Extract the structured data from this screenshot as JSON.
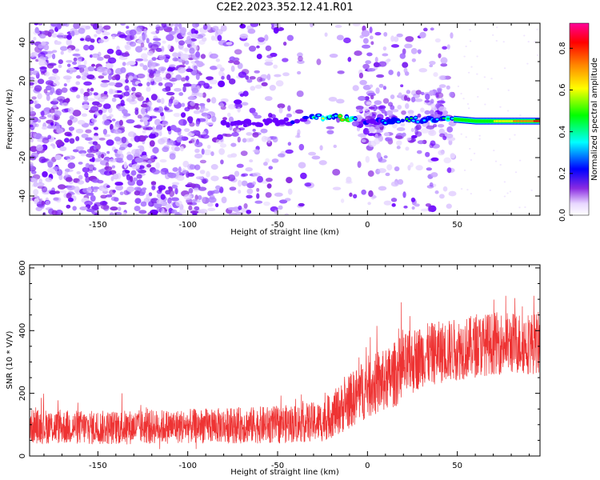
{
  "title": "C2E2.2023.352.12.41.R01",
  "chart_data": [
    {
      "type": "heatmap",
      "xlabel": "Height of straight line (km)",
      "ylabel": "Frequency (Hz)",
      "xlim": [
        -188,
        96
      ],
      "ylim": [
        -50,
        50
      ],
      "xticks": [
        -150,
        -100,
        -50,
        0,
        50
      ],
      "yticks": [
        -40,
        -20,
        0,
        20,
        40
      ],
      "colorbar": {
        "label": "Normalized spectral amplitude",
        "range": [
          0.0,
          0.92
        ],
        "ticks": [
          0.0,
          0.2,
          0.4,
          0.6,
          0.8
        ],
        "colors": [
          "#ffffff",
          "#6600ff",
          "#0000ff",
          "#00ffff",
          "#00ff00",
          "#ffff00",
          "#ff8800",
          "#ff0000",
          "#ff0099"
        ]
      },
      "ridge": {
        "description_points_x": [
          -80,
          -60,
          -40,
          -30,
          -20,
          -10,
          -5,
          0,
          10,
          20,
          30,
          40,
          48,
          60,
          70,
          80,
          90,
          95
        ],
        "frequency_hz": [
          -3,
          -2,
          -1,
          1,
          1,
          0,
          -1,
          -1,
          -1,
          -1,
          0,
          0,
          0,
          -1,
          -1,
          -1,
          -1,
          -1
        ],
        "amplitude": [
          0.15,
          0.18,
          0.22,
          0.42,
          0.55,
          0.62,
          0.3,
          0.2,
          0.3,
          0.35,
          0.4,
          0.42,
          0.5,
          0.55,
          0.6,
          0.7,
          0.8,
          0.85
        ]
      }
    },
    {
      "type": "line",
      "xlabel": "Height of straight line (km)",
      "ylabel": "SNR (10 * V/V)",
      "xlim": [
        -188,
        96
      ],
      "ylim": [
        0,
        610
      ],
      "xticks": [
        -150,
        -100,
        -50,
        0,
        50
      ],
      "yticks": [
        0,
        200,
        400,
        600
      ],
      "color": "#ee3333",
      "trend": {
        "x": [
          -188,
          -150,
          -100,
          -50,
          -25,
          -15,
          0,
          10,
          20,
          30,
          50,
          70,
          96
        ],
        "mean": [
          95,
          90,
          95,
          100,
          110,
          150,
          220,
          240,
          280,
          320,
          340,
          360,
          360
        ],
        "spread": [
          55,
          55,
          55,
          60,
          65,
          80,
          100,
          100,
          110,
          100,
          100,
          100,
          100
        ]
      }
    }
  ]
}
